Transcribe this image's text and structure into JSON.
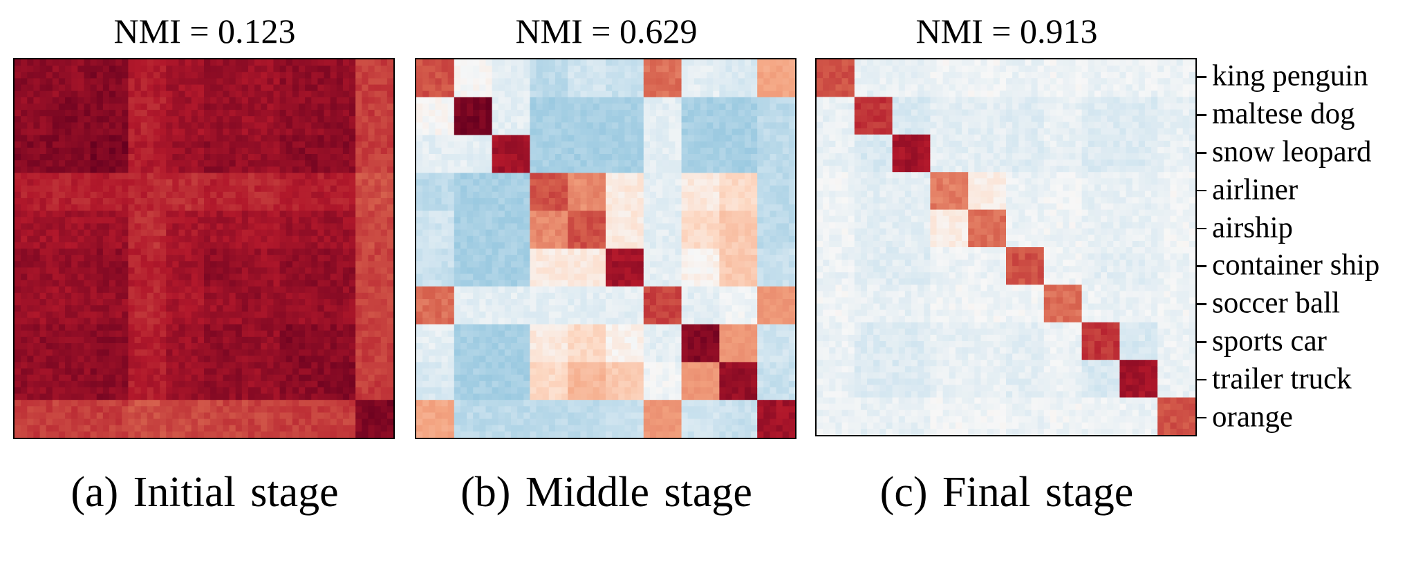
{
  "chart_data": [
    {
      "type": "heatmap",
      "title": "NMI = 0.123",
      "caption_letter": "(a)",
      "caption_text": "Initial stage",
      "block_boundaries": [
        0,
        0.1,
        0.2,
        0.3,
        0.4,
        0.5,
        0.6,
        0.7,
        0.8,
        0.9,
        1.0
      ],
      "cells": [
        [
          0.88,
          0.86,
          0.9,
          0.74,
          0.8,
          0.84,
          0.82,
          0.86,
          0.86,
          0.62
        ],
        [
          0.86,
          0.9,
          0.9,
          0.72,
          0.8,
          0.84,
          0.82,
          0.86,
          0.86,
          0.62
        ],
        [
          0.9,
          0.9,
          0.94,
          0.74,
          0.82,
          0.86,
          0.84,
          0.88,
          0.88,
          0.62
        ],
        [
          0.74,
          0.72,
          0.74,
          0.7,
          0.68,
          0.72,
          0.7,
          0.74,
          0.74,
          0.56
        ],
        [
          0.8,
          0.8,
          0.82,
          0.68,
          0.78,
          0.8,
          0.78,
          0.82,
          0.82,
          0.58
        ],
        [
          0.84,
          0.84,
          0.86,
          0.72,
          0.8,
          0.86,
          0.82,
          0.86,
          0.86,
          0.6
        ],
        [
          0.82,
          0.82,
          0.84,
          0.7,
          0.78,
          0.82,
          0.84,
          0.84,
          0.84,
          0.6
        ],
        [
          0.86,
          0.86,
          0.88,
          0.74,
          0.82,
          0.86,
          0.84,
          0.9,
          0.88,
          0.62
        ],
        [
          0.86,
          0.86,
          0.88,
          0.74,
          0.82,
          0.86,
          0.84,
          0.88,
          0.9,
          0.62
        ],
        [
          0.62,
          0.62,
          0.62,
          0.56,
          0.58,
          0.6,
          0.6,
          0.62,
          0.62,
          0.92
        ]
      ],
      "value_range": [
        -1,
        1
      ],
      "colormap": "RdBu_r"
    },
    {
      "type": "heatmap",
      "title": "NMI = 0.629",
      "caption_letter": "(b)",
      "caption_text": "Middle stage",
      "block_boundaries": [
        0,
        0.1,
        0.2,
        0.3,
        0.4,
        0.5,
        0.6,
        0.7,
        0.8,
        0.9,
        1.0
      ],
      "cells": [
        [
          0.55,
          0.0,
          -0.05,
          -0.15,
          -0.1,
          -0.12,
          0.45,
          -0.05,
          -0.08,
          0.25
        ],
        [
          0.0,
          0.95,
          -0.05,
          -0.2,
          -0.2,
          -0.2,
          -0.05,
          -0.2,
          -0.2,
          -0.15
        ],
        [
          -0.05,
          -0.05,
          0.8,
          -0.2,
          -0.2,
          -0.2,
          -0.05,
          -0.2,
          -0.2,
          -0.15
        ],
        [
          -0.15,
          -0.2,
          -0.2,
          0.55,
          0.35,
          0.05,
          -0.05,
          0.05,
          0.1,
          -0.15
        ],
        [
          -0.1,
          -0.2,
          -0.2,
          0.35,
          0.55,
          0.05,
          -0.05,
          0.1,
          0.15,
          -0.15
        ],
        [
          -0.12,
          -0.2,
          -0.2,
          0.05,
          0.05,
          0.8,
          -0.05,
          0.02,
          0.15,
          -0.12
        ],
        [
          0.45,
          -0.05,
          -0.05,
          -0.05,
          -0.05,
          -0.05,
          0.6,
          -0.05,
          -0.02,
          0.3
        ],
        [
          -0.05,
          -0.2,
          -0.2,
          0.05,
          0.1,
          0.02,
          -0.05,
          0.9,
          0.3,
          -0.1
        ],
        [
          -0.08,
          -0.2,
          -0.2,
          0.1,
          0.2,
          0.15,
          -0.02,
          0.3,
          0.85,
          -0.12
        ],
        [
          0.25,
          -0.15,
          -0.15,
          -0.15,
          -0.15,
          -0.12,
          0.3,
          -0.1,
          -0.12,
          0.8
        ]
      ],
      "value_range": [
        -1,
        1
      ],
      "colormap": "RdBu_r"
    },
    {
      "type": "heatmap",
      "title": "NMI = 0.913",
      "caption_letter": "(c)",
      "caption_text": "Final stage",
      "block_boundaries": [
        0,
        0.1,
        0.2,
        0.3,
        0.4,
        0.5,
        0.6,
        0.7,
        0.8,
        0.9,
        1.0
      ],
      "cells": [
        [
          0.55,
          -0.04,
          -0.04,
          -0.02,
          -0.02,
          -0.03,
          -0.02,
          -0.03,
          -0.03,
          -0.03
        ],
        [
          -0.04,
          0.65,
          -0.08,
          -0.05,
          -0.05,
          -0.06,
          -0.04,
          -0.07,
          -0.07,
          -0.04
        ],
        [
          -0.04,
          -0.08,
          0.8,
          -0.05,
          -0.05,
          -0.06,
          -0.04,
          -0.07,
          -0.07,
          -0.04
        ],
        [
          -0.02,
          -0.05,
          -0.05,
          0.4,
          0.04,
          -0.03,
          -0.02,
          -0.04,
          -0.04,
          -0.02
        ],
        [
          -0.02,
          -0.05,
          -0.05,
          0.04,
          0.45,
          -0.03,
          -0.02,
          -0.04,
          -0.04,
          -0.02
        ],
        [
          -0.03,
          -0.06,
          -0.06,
          -0.03,
          -0.03,
          0.55,
          -0.02,
          -0.05,
          -0.05,
          -0.03
        ],
        [
          -0.02,
          -0.04,
          -0.04,
          -0.02,
          -0.02,
          -0.02,
          0.45,
          -0.03,
          -0.03,
          -0.02
        ],
        [
          -0.03,
          -0.07,
          -0.07,
          -0.04,
          -0.04,
          -0.05,
          -0.03,
          0.65,
          -0.08,
          -0.03
        ],
        [
          -0.03,
          -0.07,
          -0.07,
          -0.04,
          -0.04,
          -0.05,
          -0.03,
          -0.08,
          0.8,
          -0.03
        ],
        [
          -0.03,
          -0.04,
          -0.04,
          -0.02,
          -0.02,
          -0.03,
          -0.02,
          -0.03,
          -0.03,
          0.55
        ]
      ],
      "value_range": [
        -1,
        1
      ],
      "colormap": "RdBu_r",
      "ytick_labels": [
        "king penguin",
        "maltese dog",
        "snow leopard",
        "airliner",
        "airship",
        "container ship",
        "soccer ball",
        "sports car",
        "trailer truck",
        "orange"
      ]
    }
  ]
}
